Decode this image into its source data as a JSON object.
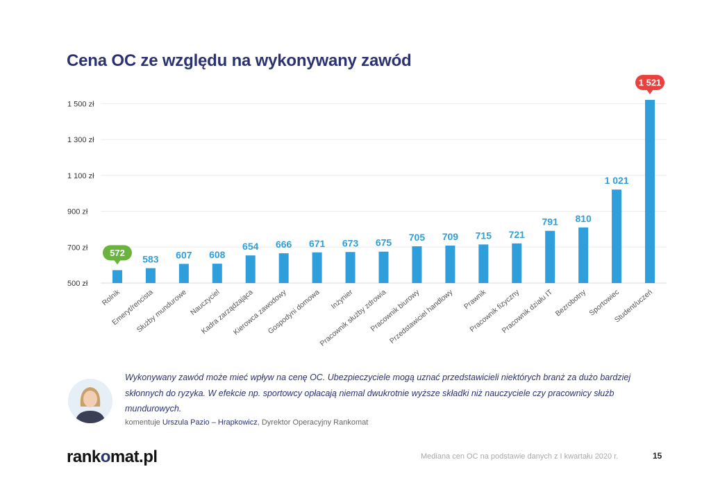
{
  "page": {
    "title": "Cena OC ze względu na wykonywany zawód",
    "quote": "Wykonywany zawód może mieć wpływ na cenę OC. Ubezpieczyciele mogą uznać przedstawicieli niektórych branż za dużo bardziej skłonnych do ryzyka. W efekcie np. sportowcy opłacają niemal dwukrotnie wyższe składki niż nauczyciele czy pracownicy służb mundurowych.",
    "credit_prefix": "komentuje ",
    "credit_author": "Urszula Pazio – Hrapkowicz",
    "credit_role": ", Dyrektor Operacyjny Rankomat",
    "logo_part1": "rank",
    "logo_o": "o",
    "logo_part2": "mat.pl",
    "source": "Mediana cen OC na podstawie danych z I kwartału 2020 r.",
    "page_number": "15"
  },
  "chart_data": {
    "type": "bar",
    "categories": [
      "Rolnik",
      "Emeryt/rencista",
      "Służby mundurowe",
      "Nauczyciel",
      "Kadra zarządzająca",
      "Kierowca zawodowy",
      "Gospodyni domowa",
      "Inżynier",
      "Pracownik służby zdrowia",
      "Pracownik biurowy",
      "Przedstawiciel handlowy",
      "Prawnik",
      "Pracownik fizyczny",
      "Pracownik działu IT",
      "Bezrobotny",
      "Sportowiec",
      "Student/uczeń"
    ],
    "values": [
      572,
      583,
      607,
      608,
      654,
      666,
      671,
      673,
      675,
      705,
      709,
      715,
      721,
      791,
      810,
      1021,
      1521
    ],
    "value_labels": [
      "572",
      "583",
      "607",
      "608",
      "654",
      "666",
      "671",
      "673",
      "675",
      "705",
      "709",
      "715",
      "721",
      "791",
      "810",
      "1 021",
      "1 521"
    ],
    "yticks": [
      "500 zł",
      "700 zł",
      "900 zł",
      "1 100 zł",
      "1 300 zł",
      "1 500 zł"
    ],
    "ytick_values": [
      500,
      700,
      900,
      1100,
      1300,
      1500
    ],
    "ylim": [
      500,
      1540
    ],
    "bar_color": "#2e9fda",
    "label_color": "#2e9fda",
    "highlight_min_color": "#6ab33f",
    "highlight_max_color": "#e9413d",
    "grid": true
  }
}
